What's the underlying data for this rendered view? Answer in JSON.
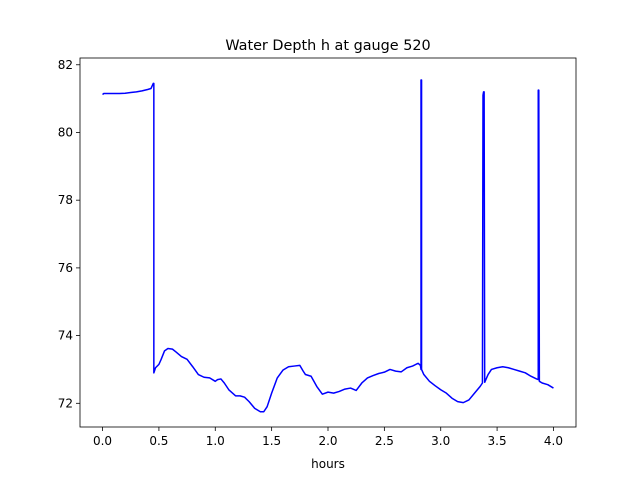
{
  "chart_data": {
    "type": "line",
    "title": "Water Depth h at gauge 520",
    "xlabel": "hours",
    "ylabel": "",
    "xlim": [
      -0.2,
      4.2
    ],
    "ylim": [
      71.3,
      82.2
    ],
    "xticks": [
      0.0,
      0.5,
      1.0,
      1.5,
      2.0,
      2.5,
      3.0,
      3.5,
      4.0
    ],
    "xtick_labels": [
      "0.0",
      "0.5",
      "1.0",
      "1.5",
      "2.0",
      "2.5",
      "3.0",
      "3.5",
      "4.0"
    ],
    "yticks": [
      72,
      74,
      76,
      78,
      80,
      82
    ],
    "ytick_labels": [
      "72",
      "74",
      "76",
      "78",
      "80",
      "82"
    ],
    "grid": false,
    "series": [
      {
        "color": "#0000ff",
        "x": [
          0.0,
          0.01,
          0.05,
          0.1,
          0.15,
          0.2,
          0.25,
          0.3,
          0.35,
          0.4,
          0.43,
          0.45,
          0.455,
          0.455,
          0.47,
          0.5,
          0.52,
          0.55,
          0.58,
          0.62,
          0.65,
          0.7,
          0.75,
          0.8,
          0.85,
          0.9,
          0.95,
          1.0,
          1.02,
          1.05,
          1.08,
          1.12,
          1.18,
          1.22,
          1.26,
          1.3,
          1.35,
          1.4,
          1.43,
          1.46,
          1.5,
          1.55,
          1.6,
          1.65,
          1.7,
          1.75,
          1.78,
          1.8,
          1.85,
          1.9,
          1.95,
          2.0,
          2.05,
          2.1,
          2.15,
          2.2,
          2.25,
          2.3,
          2.35,
          2.4,
          2.45,
          2.5,
          2.55,
          2.6,
          2.65,
          2.7,
          2.75,
          2.78,
          2.8,
          2.82,
          2.825,
          2.825,
          2.83,
          2.83,
          2.85,
          2.9,
          2.95,
          3.0,
          3.05,
          3.1,
          3.15,
          3.2,
          3.25,
          3.3,
          3.35,
          3.37,
          3.375,
          3.38,
          3.385,
          3.39,
          3.39,
          3.42,
          3.45,
          3.5,
          3.55,
          3.6,
          3.65,
          3.7,
          3.75,
          3.8,
          3.85,
          3.865,
          3.865,
          3.87,
          3.875,
          3.875,
          3.9,
          3.95,
          4.0
        ],
        "y": [
          81.12,
          81.15,
          81.15,
          81.15,
          81.15,
          81.16,
          81.18,
          81.2,
          81.23,
          81.27,
          81.3,
          81.45,
          81.45,
          72.9,
          73.05,
          73.15,
          73.3,
          73.55,
          73.62,
          73.6,
          73.52,
          73.38,
          73.3,
          73.08,
          72.85,
          72.77,
          72.75,
          72.65,
          72.7,
          72.72,
          72.6,
          72.4,
          72.22,
          72.22,
          72.18,
          72.05,
          71.85,
          71.75,
          71.75,
          71.9,
          72.3,
          72.75,
          72.98,
          73.08,
          73.1,
          73.12,
          72.95,
          72.85,
          72.8,
          72.5,
          72.27,
          72.33,
          72.3,
          72.35,
          72.42,
          72.45,
          72.38,
          72.6,
          72.75,
          72.82,
          72.88,
          72.92,
          73.0,
          72.95,
          72.93,
          73.05,
          73.1,
          73.15,
          73.18,
          73.12,
          73.0,
          81.55,
          81.55,
          73.0,
          72.85,
          72.65,
          72.52,
          72.4,
          72.3,
          72.15,
          72.05,
          72.02,
          72.1,
          72.3,
          72.5,
          72.6,
          81.1,
          81.2,
          81.2,
          72.62,
          72.62,
          72.85,
          73.0,
          73.05,
          73.08,
          73.05,
          73.0,
          72.95,
          72.9,
          72.8,
          72.72,
          72.7,
          81.25,
          81.25,
          72.65,
          72.65,
          72.6,
          72.55,
          72.45
        ]
      }
    ]
  }
}
